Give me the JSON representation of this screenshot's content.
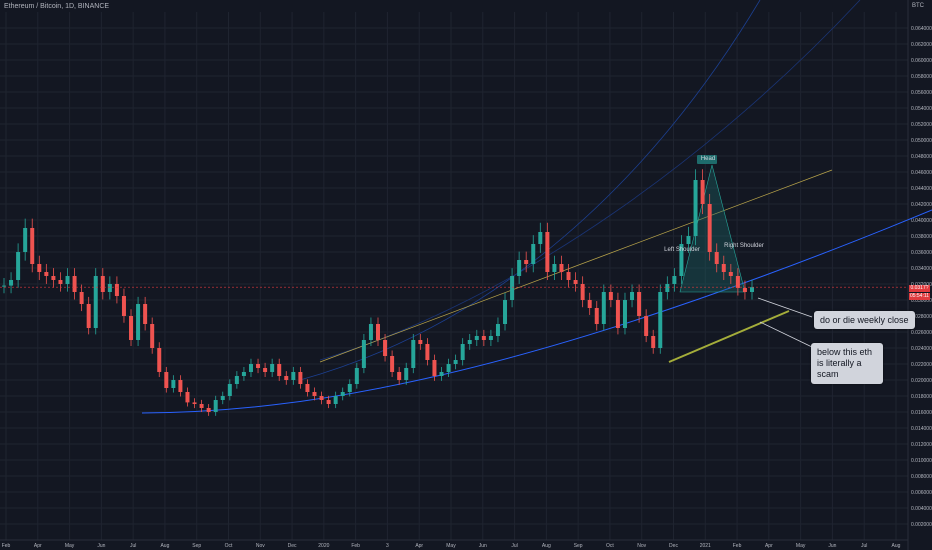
{
  "title": "Ethereum / Bitcoin, 1D, BINANCE",
  "currency": "BTC",
  "price_tags": [
    "0.0317?",
    "05:54:11"
  ],
  "annotations": {
    "callout_1": "do or die weekly close",
    "callout_2": "below this eth is literally a scam",
    "head": "Head",
    "left_shoulder": "Left Shoulder",
    "right_shoulder": "Right Shoulder"
  },
  "colors": {
    "background": "#131722",
    "up_candle": "#26a69a",
    "down_candle": "#ef5350",
    "support_curve": "#2962ff",
    "channel_line": "#b7a34a",
    "accent_yellow": "#a4ad3a",
    "pattern_fill": "#1e6b6b"
  },
  "chart_data": {
    "type": "line",
    "title": "Ethereum / Bitcoin, 1D, BINANCE",
    "xlabel": "",
    "ylabel": "BTC",
    "ylim": [
      0.0,
      0.066
    ],
    "yticks": [
      "0.002000",
      "0.004000",
      "0.006000",
      "0.008000",
      "0.010000",
      "0.012000",
      "0.014000",
      "0.016000",
      "0.018000",
      "0.020000",
      "0.022000",
      "0.024000",
      "0.026000",
      "0.028000",
      "0.030000",
      "0.032000",
      "0.034000",
      "0.036000",
      "0.038000",
      "0.040000",
      "0.042000",
      "0.044000",
      "0.046000",
      "0.048000",
      "0.050000",
      "0.052000",
      "0.054000",
      "0.056000",
      "0.058000",
      "0.060000",
      "0.062000",
      "0.064000"
    ],
    "xticks": [
      "Feb",
      "Apr",
      "May",
      "Jun",
      "Jul",
      "Aug",
      "Sep",
      "Oct",
      "Nov",
      "Dec",
      "2020",
      "Feb",
      "3",
      "Apr",
      "May",
      "Jun",
      "Jul",
      "Aug",
      "Sep",
      "Oct",
      "Nov",
      "Dec",
      "2021",
      "Feb",
      "Apr",
      "May",
      "Jun",
      "Jul",
      "Aug"
    ],
    "grid": true,
    "series": [
      {
        "values": [
          0.0318,
          0.0325,
          0.036,
          0.039,
          0.0345,
          0.0335,
          0.033,
          0.0325,
          0.032,
          0.033,
          0.031,
          0.0295,
          0.0265,
          0.033,
          0.031,
          0.032,
          0.0305,
          0.028,
          0.025,
          0.0295,
          0.027,
          0.024,
          0.021,
          0.019,
          0.02,
          0.0185,
          0.0172,
          0.017,
          0.0165,
          0.016,
          0.0175,
          0.018,
          0.0195,
          0.0205,
          0.021,
          0.022,
          0.0215,
          0.021,
          0.022,
          0.0205,
          0.02,
          0.021,
          0.0195,
          0.0185,
          0.018,
          0.0175,
          0.017,
          0.018,
          0.0185,
          0.0195,
          0.0215,
          0.025,
          0.027,
          0.025,
          0.023,
          0.021,
          0.02,
          0.0215,
          0.025,
          0.0245,
          0.0225,
          0.0205,
          0.021,
          0.022,
          0.0225,
          0.0245,
          0.025,
          0.0255,
          0.025,
          0.0255,
          0.027,
          0.03,
          0.033,
          0.035,
          0.0345,
          0.037,
          0.0385,
          0.0335,
          0.0345,
          0.0335,
          0.0325,
          0.032,
          0.03,
          0.029,
          0.027,
          0.031,
          0.03,
          0.0265,
          0.03,
          0.031,
          0.028,
          0.0255,
          0.024,
          0.031,
          0.032,
          0.033,
          0.037,
          0.038,
          0.045,
          0.042,
          0.036,
          0.0345,
          0.0335,
          0.033,
          0.0315,
          0.031,
          0.0316
        ]
      }
    ]
  }
}
